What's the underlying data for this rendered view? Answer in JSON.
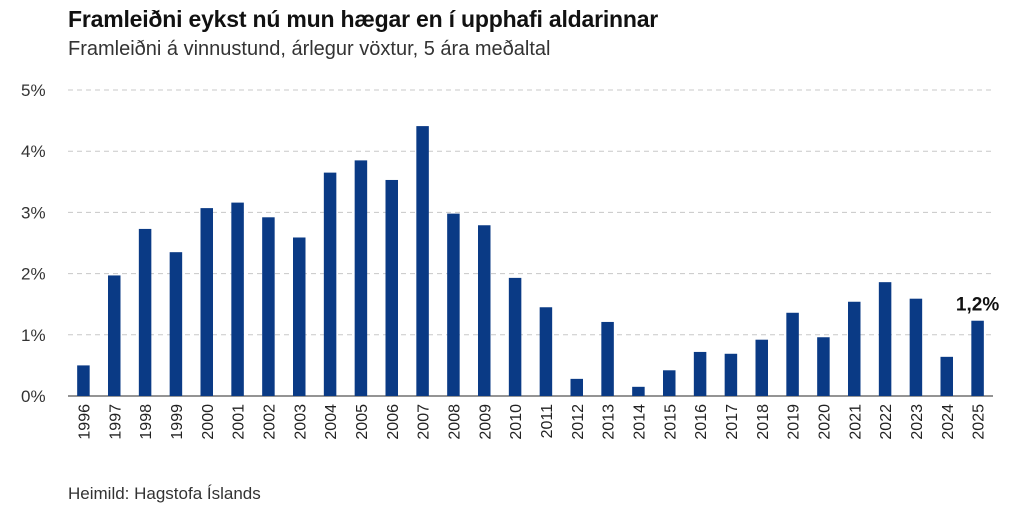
{
  "title": "Framleiðni eykst nú mun hægar en í upphafi aldarinnar",
  "subtitle": "Framleiðni á vinnustund, árlegur vöxtur, 5 ára meðaltal",
  "source": "Heimild: Hagstofa Íslands",
  "chart_data": {
    "type": "bar",
    "categories": [
      "1996",
      "1997",
      "1998",
      "1999",
      "2000",
      "2001",
      "2002",
      "2003",
      "2004",
      "2005",
      "2006",
      "2007",
      "2008",
      "2009",
      "2010",
      "2011",
      "2012",
      "2013",
      "2014",
      "2015",
      "2016",
      "2017",
      "2018",
      "2019",
      "2020",
      "2021",
      "2022",
      "2023",
      "2024",
      "2025"
    ],
    "values": [
      0.5,
      1.97,
      2.73,
      2.35,
      3.07,
      3.16,
      2.92,
      2.59,
      3.65,
      3.85,
      3.53,
      4.41,
      2.98,
      2.79,
      1.93,
      1.45,
      0.28,
      1.21,
      0.15,
      0.42,
      0.72,
      0.69,
      0.92,
      1.36,
      0.96,
      1.54,
      1.86,
      1.59,
      0.64,
      1.23
    ],
    "y_ticks": [
      "0%",
      "1%",
      "2%",
      "3%",
      "4%",
      "5%"
    ],
    "ylim": [
      0,
      5
    ],
    "bar_color": "#0a3a85",
    "grid": true,
    "annotations": [
      {
        "category": "2025",
        "text": "1,2%"
      }
    ]
  }
}
